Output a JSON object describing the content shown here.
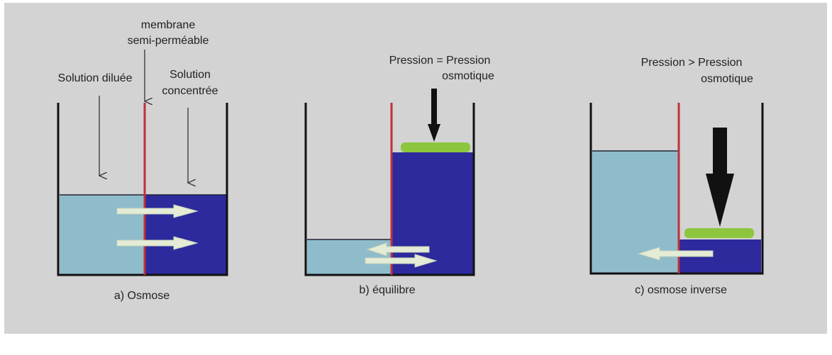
{
  "panels": [
    {
      "caption": "a) Osmose",
      "labels": [
        {
          "lines": [
            "membrane",
            "semi-perméable"
          ]
        },
        {
          "lines": [
            "Solution diluée"
          ]
        },
        {
          "lines": [
            "Solution",
            "concentrée"
          ]
        }
      ]
    },
    {
      "caption": "b) équilibre",
      "labels": [
        {
          "lines": [
            "Pression = Pression",
            "osmotique"
          ]
        }
      ]
    },
    {
      "caption": "c) osmose inverse",
      "labels": [
        {
          "lines": [
            "Pression > Pression",
            "osmotique"
          ]
        }
      ]
    }
  ]
}
